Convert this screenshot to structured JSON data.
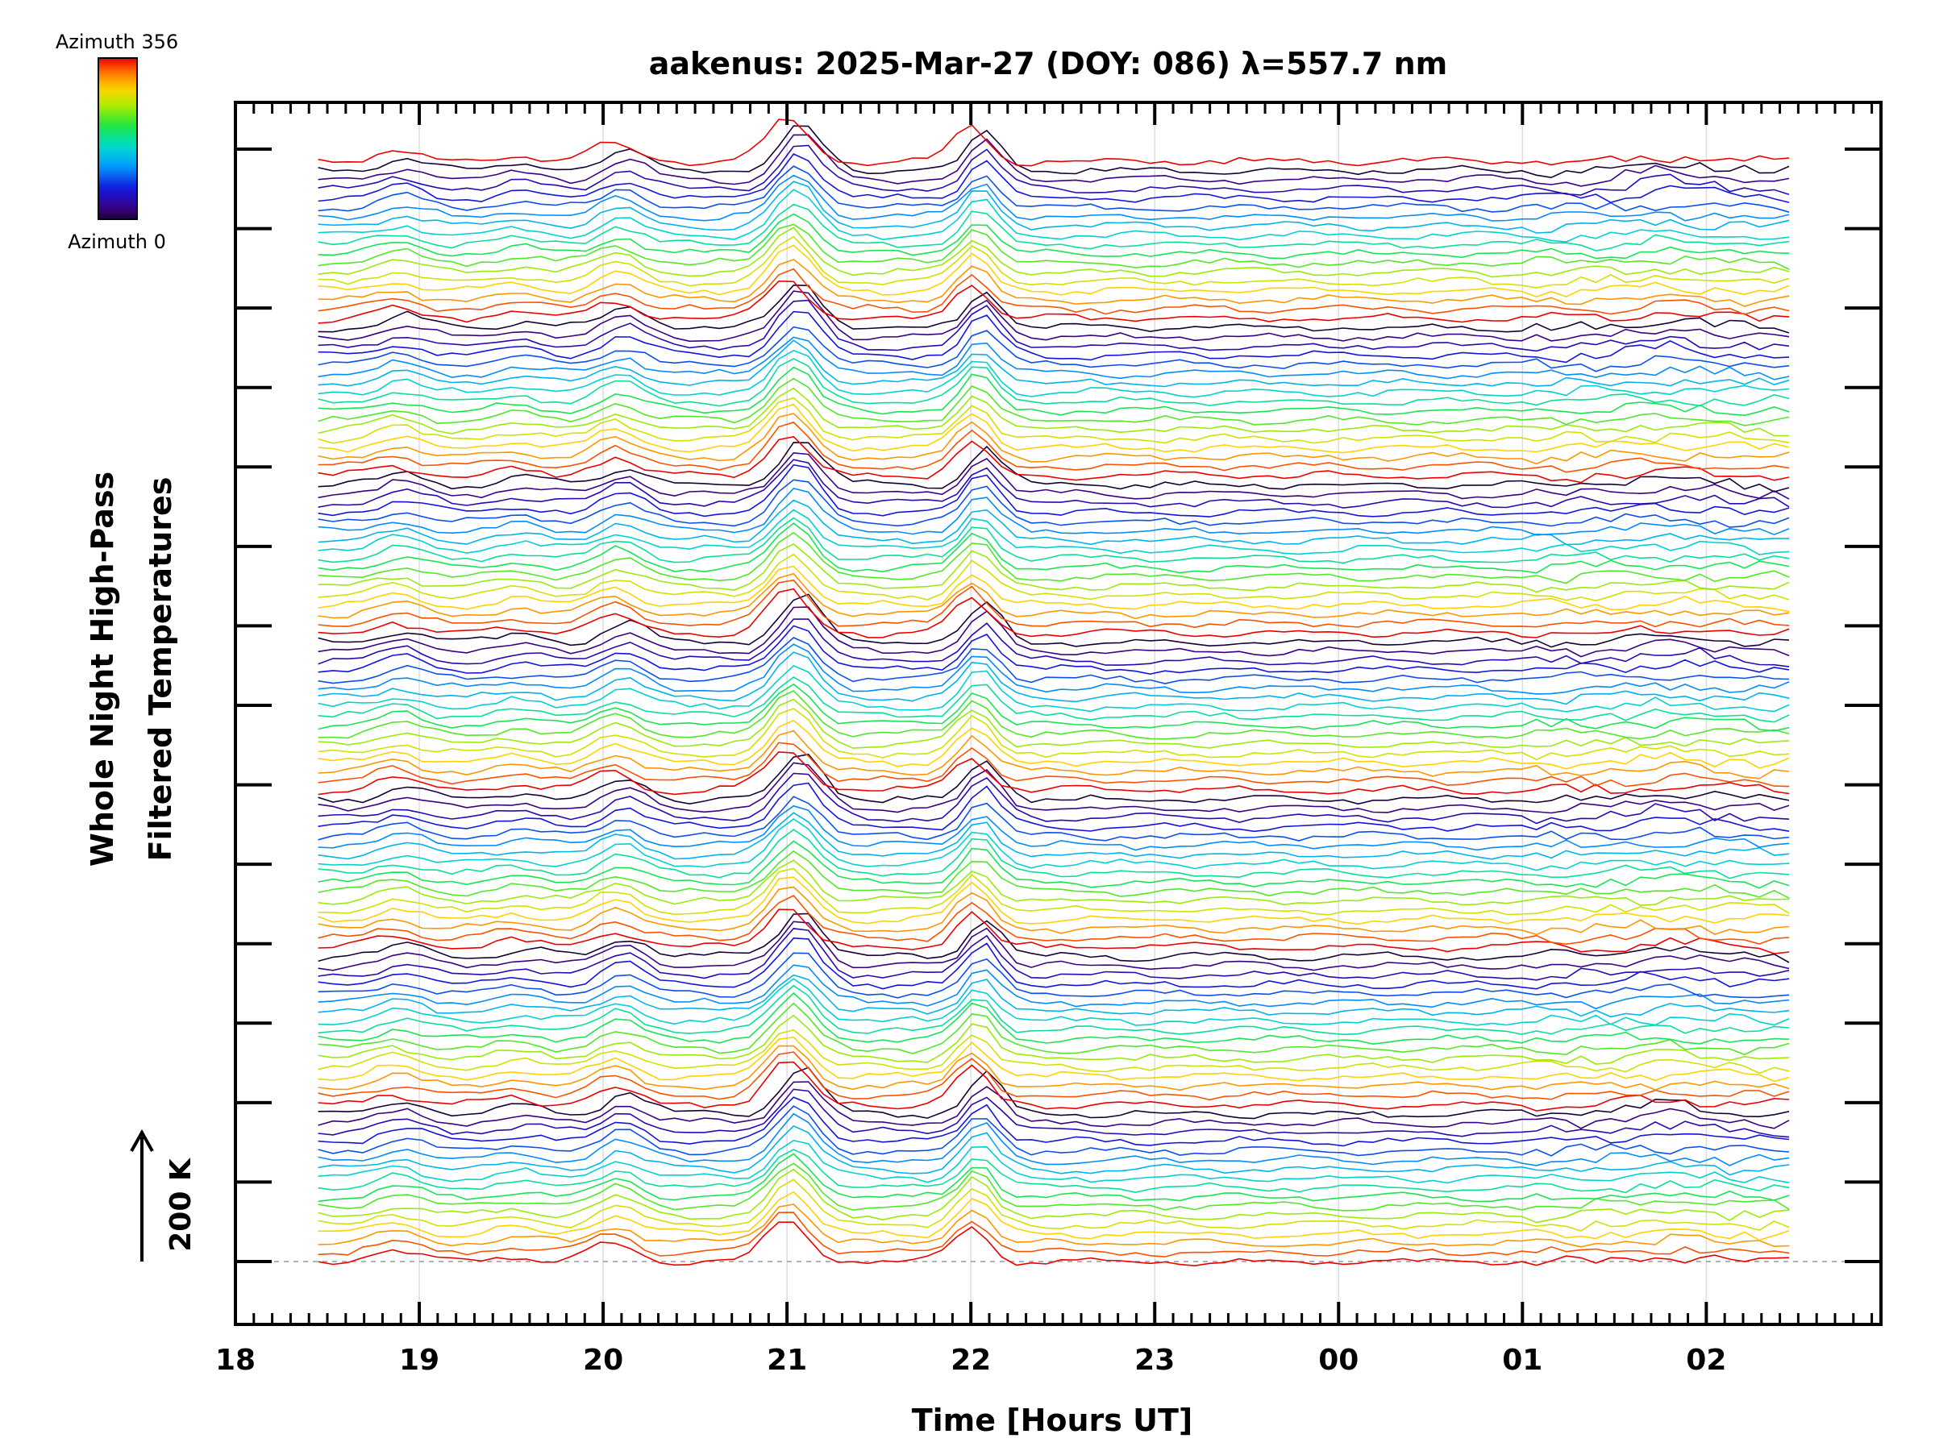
{
  "chart_data": {
    "type": "line",
    "title": "aakenus: 2025-Mar-27 (DOY: 086) λ=557.7 nm",
    "xlabel": "Time [Hours UT]",
    "ylabel_line1": "Whole Night High-Pass",
    "ylabel_line2": "Filtered Temperatures",
    "scale_label": "200 K",
    "colorbar": {
      "top_label": "Azimuth 356",
      "bottom_label": "Azimuth 0",
      "min": 0,
      "max": 356
    },
    "x_hours_start": 18.0,
    "x_hours_end": 26.95,
    "data_start": 18.45,
    "data_end": 26.45,
    "x_tick_hours": [
      18,
      19,
      20,
      21,
      22,
      23,
      24,
      25,
      26
    ],
    "x_tick_labels": [
      "18",
      "19",
      "20",
      "21",
      "22",
      "23",
      "00",
      "01",
      "02"
    ],
    "y_major_ticks": 15,
    "series_count": 120,
    "stack_bands": 7,
    "band_size": 17,
    "line_offset_K": 14,
    "events": [
      {
        "hour": 21.0,
        "amplitude_K": 70
      },
      {
        "hour": 22.0,
        "amplitude_K": 58
      },
      {
        "hour": 20.05,
        "amplitude_K": 30
      },
      {
        "hour": 18.85,
        "amplitude_K": 18
      },
      {
        "hour": 19.5,
        "amplitude_K": 10
      }
    ]
  }
}
